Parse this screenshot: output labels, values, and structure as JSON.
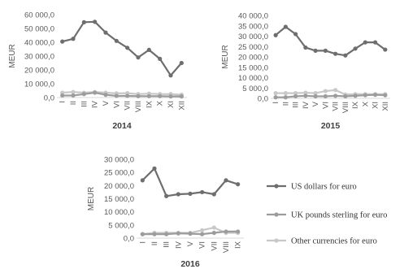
{
  "colors": {
    "usd": "#6e6e6e",
    "gbp": "#9c9c9c",
    "other": "#c8c8c8",
    "axis": "#d9d9d9",
    "text": "#595959"
  },
  "legend": [
    {
      "key": "usd",
      "label": "US dollars for euro"
    },
    {
      "key": "gbp",
      "label": "UK pounds sterling for euro"
    },
    {
      "key": "other",
      "label": "Other currencies for euro"
    }
  ],
  "chart_data": [
    {
      "type": "line",
      "title": "2014",
      "xlabel": "",
      "ylabel": "MEUR",
      "categories": [
        "I",
        "II",
        "III",
        "IV",
        "V",
        "VI",
        "VII",
        "VIII",
        "IX",
        "X",
        "XI",
        "XII"
      ],
      "ylim": [
        0,
        60000
      ],
      "yticks": [
        0,
        10000,
        20000,
        30000,
        40000,
        50000,
        60000
      ],
      "ytick_labels": [
        "0,0",
        "10 000,0",
        "20 000,0",
        "30 000,0",
        "40 000,0",
        "50 000,0",
        "60 000,0"
      ],
      "grid": false,
      "series": [
        {
          "name": "US dollars for euro",
          "key": "usd",
          "values": [
            40500,
            42500,
            54500,
            54800,
            47000,
            41000,
            36000,
            29000,
            34500,
            28000,
            16000,
            25000
          ]
        },
        {
          "name": "UK pounds sterling for euro",
          "key": "gbp",
          "values": [
            1500,
            1500,
            2500,
            3500,
            2000,
            1200,
            1200,
            1000,
            1000,
            1000,
            800,
            800
          ]
        },
        {
          "name": "Other currencies for euro",
          "key": "other",
          "values": [
            3500,
            4000,
            3500,
            4000,
            3500,
            3000,
            3200,
            2500,
            2800,
            2500,
            2500,
            2000
          ]
        }
      ]
    },
    {
      "type": "line",
      "title": "2015",
      "xlabel": "",
      "ylabel": "MEUR",
      "categories": [
        "I",
        "II",
        "III",
        "IV",
        "V",
        "VI",
        "VII",
        "VIII",
        "IX",
        "X",
        "XI",
        "XII"
      ],
      "ylim": [
        0,
        40000
      ],
      "yticks": [
        0,
        5000,
        10000,
        15000,
        20000,
        25000,
        30000,
        35000,
        40000
      ],
      "ytick_labels": [
        "0,0",
        "5 000,0",
        "10 000,0",
        "15 000,0",
        "20 000,0",
        "25 000,0",
        "30 000,0",
        "35 000,0",
        "40 000,0"
      ],
      "grid": false,
      "series": [
        {
          "name": "US dollars for euro",
          "key": "usd",
          "values": [
            30500,
            34500,
            31000,
            24500,
            23000,
            23000,
            21500,
            20700,
            24000,
            27000,
            27000,
            23500
          ]
        },
        {
          "name": "UK pounds sterling for euro",
          "key": "gbp",
          "values": [
            500,
            500,
            1000,
            1200,
            1000,
            1000,
            1200,
            1000,
            1200,
            1500,
            1700,
            1500
          ]
        },
        {
          "name": "Other currencies for euro",
          "key": "other",
          "values": [
            2500,
            2500,
            2500,
            2700,
            2500,
            3500,
            4000,
            1800,
            2000,
            2000,
            2000,
            2000
          ]
        }
      ]
    },
    {
      "type": "line",
      "title": "2016",
      "xlabel": "",
      "ylabel": "MEUR",
      "categories": [
        "I",
        "II",
        "III",
        "IV",
        "V",
        "VI",
        "VII",
        "VIII",
        "IX"
      ],
      "ylim": [
        0,
        30000
      ],
      "yticks": [
        0,
        5000,
        10000,
        15000,
        20000,
        25000,
        30000
      ],
      "ytick_labels": [
        "0,0",
        "5 000,0",
        "10 000,0",
        "15 000,0",
        "20 000,0",
        "25 000,0",
        "30 000,0"
      ],
      "grid": false,
      "series": [
        {
          "name": "US dollars for euro",
          "key": "usd",
          "values": [
            22000,
            26500,
            16000,
            16700,
            16900,
            17500,
            16700,
            22000,
            20500
          ]
        },
        {
          "name": "UK pounds sterling for euro",
          "key": "gbp",
          "values": [
            1500,
            1500,
            1500,
            1800,
            1700,
            1500,
            2000,
            2500,
            2500
          ]
        },
        {
          "name": "Other currencies for euro",
          "key": "other",
          "values": [
            1500,
            2000,
            2000,
            2000,
            2000,
            3000,
            4000,
            2000,
            2000
          ]
        }
      ]
    }
  ]
}
